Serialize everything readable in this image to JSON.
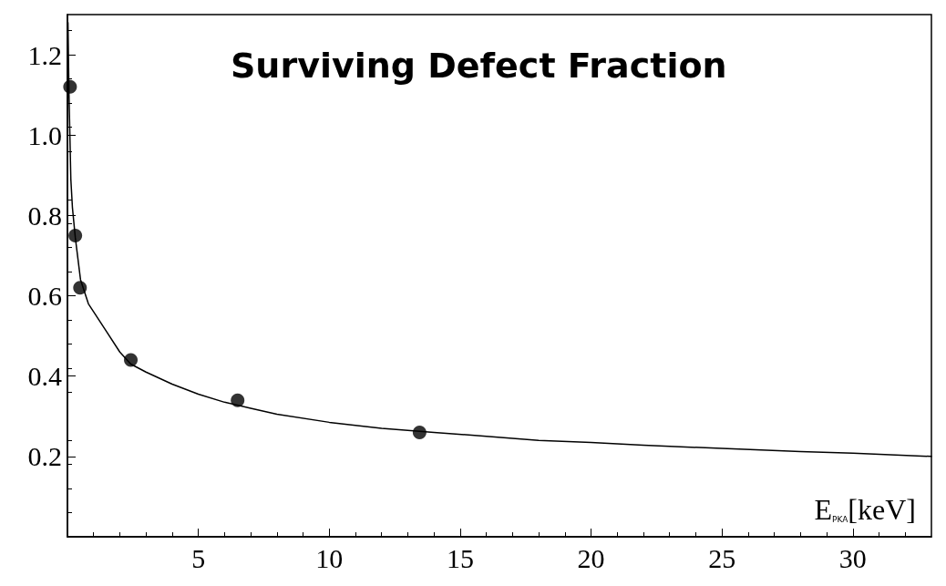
{
  "chart_data": {
    "type": "scatter",
    "title": "Surviving Defect Fraction",
    "xlabel": "E$_{PKA}$[keV]",
    "xlim": [
      0,
      33
    ],
    "xticks": [
      5,
      10,
      15,
      20,
      25,
      30
    ],
    "ylim": [
      0,
      1.3
    ],
    "yticks": [
      0.2,
      0.4,
      0.6,
      {
        "value": 1,
        "label": "1.0"
      },
      0.8,
      1.2
    ],
    "series": [
      {
        "color": "#000000",
        "marker": "circle",
        "x": [
          0.1,
          0.3,
          0.48,
          2.42,
          6.5,
          13.45
        ],
        "values": [
          1.12,
          0.75,
          0.62,
          0.44,
          0.34,
          0.26
        ]
      },
      {
        "type": "line",
        "color": "#000000",
        "marker": "none",
        "line_style": "solid",
        "x": [
          0.02,
          0.06,
          0.13,
          0.19,
          0.3,
          0.5,
          0.8,
          1,
          1.5,
          2,
          2.42,
          3,
          4,
          5,
          6,
          7,
          8,
          10,
          12,
          14,
          16,
          18,
          20,
          22,
          25,
          28,
          30,
          33
        ],
        "values": [
          1.28,
          1.1,
          0.89,
          0.82,
          0.745,
          0.64,
          0.58,
          0.56,
          0.51,
          0.46,
          0.43,
          0.41,
          0.38,
          0.355,
          0.335,
          0.32,
          0.305,
          0.285,
          0.27,
          0.26,
          0.25,
          0.24,
          0.235,
          0.228,
          0.22,
          0.212,
          0.208,
          0.2
        ]
      }
    ]
  }
}
